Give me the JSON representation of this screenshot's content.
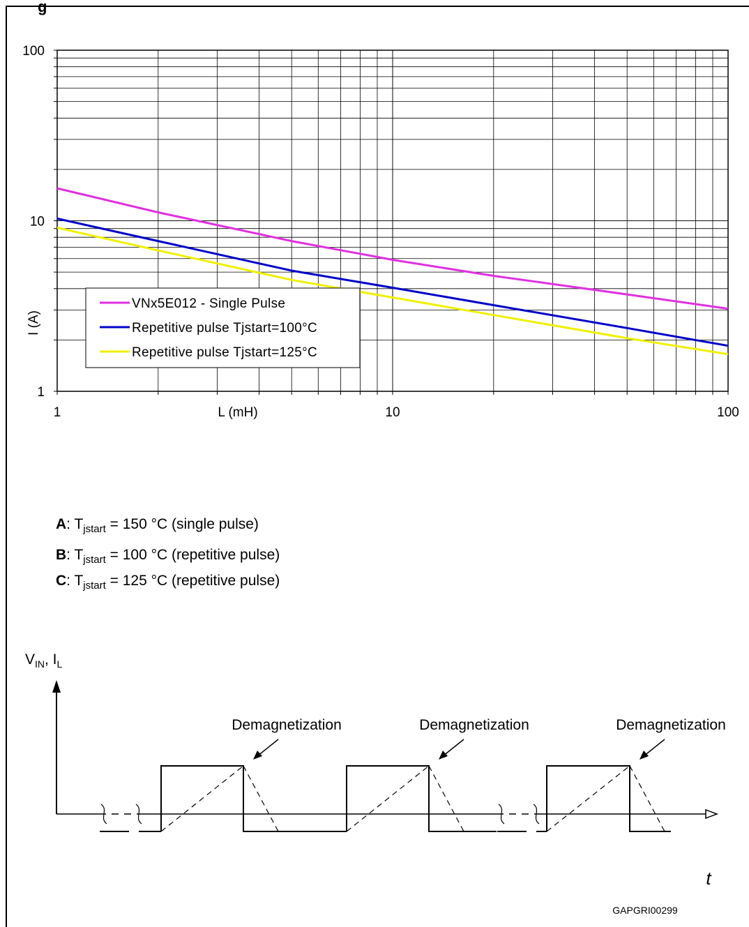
{
  "heading": "g",
  "chart_data": {
    "type": "line",
    "xscale": "log",
    "yscale": "log",
    "xlim": [
      1,
      100
    ],
    "ylim": [
      1,
      100
    ],
    "xlabel": "L (mH)",
    "ylabel": "I (A)",
    "x_ticks": [
      "1",
      "10",
      "100"
    ],
    "y_ticks": [
      "100",
      "10",
      "1"
    ],
    "grid": true,
    "legend_position": "bottom-left",
    "series": [
      {
        "name": "VNx5E012 - Single Pulse",
        "color": "#e030e0",
        "x": [
          1,
          2,
          5,
          10,
          20,
          50,
          100
        ],
        "y": [
          15.5,
          11.2,
          7.6,
          5.9,
          4.75,
          3.7,
          3.05
        ]
      },
      {
        "name": "Repetitive pulse Tjstart=100°C",
        "color": "#0000c8",
        "x": [
          1,
          2,
          5,
          10,
          20,
          50,
          100
        ],
        "y": [
          10.3,
          7.6,
          5.1,
          4.05,
          3.2,
          2.35,
          1.85
        ]
      },
      {
        "name": "Repetitive pulse Tjstart=125°C",
        "color": "#f0f000",
        "x": [
          1,
          2,
          5,
          10,
          20,
          50,
          100
        ],
        "y": [
          9.1,
          6.7,
          4.5,
          3.55,
          2.8,
          2.05,
          1.65
        ]
      }
    ]
  },
  "notes": [
    {
      "letter": "A",
      "symbol": "T",
      "sub": "jstart",
      "text": " = 150 °C (single pulse)"
    },
    {
      "letter": "B",
      "symbol": "T",
      "sub": "jstart",
      "text": " = 100 °C (repetitive pulse)"
    },
    {
      "letter": "C",
      "symbol": "T",
      "sub": "jstart",
      "text": " = 125 °C (repetitive pulse)"
    }
  ],
  "diagram": {
    "y_label_v": "V",
    "y_label_v_sub": "IN",
    "y_label_sep": ", I",
    "y_label_i_sub": "L",
    "x_label": "t",
    "demag_labels": [
      "Demagnetization",
      "Demagnetization",
      "Demagnetization"
    ],
    "code": "GAPGRI00299"
  }
}
